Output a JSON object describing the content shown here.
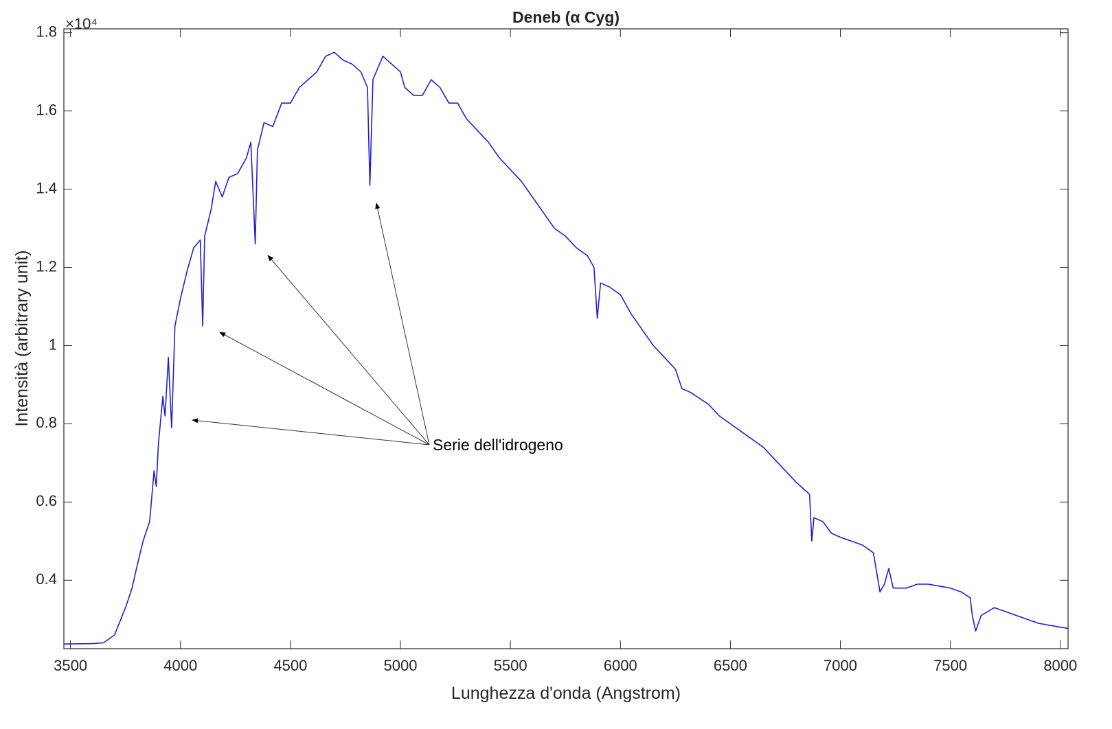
{
  "chart_data": {
    "type": "line",
    "title": "Deneb (α Cyg)",
    "x_label": "Lunghezza d'onda (Angstrom)",
    "y_label": "Intensità (arbitrary unit)",
    "y_multiplier": "×10⁴",
    "annotation": "Serie dell'idrogeno",
    "color": "#1f1fd6",
    "x": [
      3470,
      3600,
      3650,
      3700,
      3750,
      3780,
      3800,
      3830,
      3860,
      3880,
      3890,
      3900,
      3920,
      3930,
      3945,
      3960,
      3975,
      4000,
      4030,
      4060,
      4090,
      4101,
      4110,
      4140,
      4160,
      4190,
      4220,
      4260,
      4300,
      4320,
      4340,
      4350,
      4380,
      4420,
      4460,
      4500,
      4540,
      4580,
      4620,
      4660,
      4700,
      4740,
      4780,
      4820,
      4850,
      4861,
      4875,
      4920,
      4960,
      5000,
      5020,
      5060,
      5100,
      5140,
      5180,
      5220,
      5260,
      5300,
      5350,
      5400,
      5450,
      5500,
      5550,
      5600,
      5650,
      5700,
      5750,
      5800,
      5850,
      5880,
      5895,
      5910,
      5950,
      6000,
      6050,
      6100,
      6150,
      6200,
      6250,
      6280,
      6320,
      6400,
      6450,
      6500,
      6550,
      6600,
      6650,
      6700,
      6750,
      6800,
      6860,
      6870,
      6880,
      6920,
      6960,
      7000,
      7050,
      7100,
      7150,
      7165,
      7180,
      7200,
      7220,
      7240,
      7300,
      7350,
      7400,
      7450,
      7500,
      7550,
      7590,
      7600,
      7615,
      7640,
      7700,
      7750,
      7800,
      7850,
      7900,
      7950,
      8000,
      8035
    ],
    "values": [
      0.237,
      0.238,
      0.24,
      0.26,
      0.33,
      0.38,
      0.43,
      0.5,
      0.55,
      0.68,
      0.64,
      0.75,
      0.87,
      0.82,
      0.97,
      0.79,
      1.05,
      1.12,
      1.19,
      1.25,
      1.27,
      1.05,
      1.28,
      1.35,
      1.42,
      1.38,
      1.43,
      1.44,
      1.48,
      1.52,
      1.26,
      1.5,
      1.57,
      1.56,
      1.62,
      1.62,
      1.66,
      1.68,
      1.7,
      1.74,
      1.75,
      1.73,
      1.72,
      1.7,
      1.66,
      1.41,
      1.68,
      1.74,
      1.72,
      1.7,
      1.66,
      1.64,
      1.64,
      1.68,
      1.66,
      1.62,
      1.62,
      1.58,
      1.55,
      1.52,
      1.48,
      1.45,
      1.42,
      1.38,
      1.34,
      1.3,
      1.28,
      1.25,
      1.23,
      1.2,
      1.07,
      1.16,
      1.15,
      1.13,
      1.08,
      1.04,
      1.0,
      0.97,
      0.94,
      0.89,
      0.88,
      0.85,
      0.82,
      0.8,
      0.78,
      0.76,
      0.74,
      0.71,
      0.68,
      0.65,
      0.62,
      0.5,
      0.56,
      0.55,
      0.52,
      0.51,
      0.5,
      0.49,
      0.47,
      0.42,
      0.37,
      0.39,
      0.43,
      0.38,
      0.38,
      0.39,
      0.39,
      0.385,
      0.38,
      0.37,
      0.355,
      0.31,
      0.27,
      0.31,
      0.33,
      0.32,
      0.31,
      0.3,
      0.29,
      0.285,
      0.28,
      0.277
    ],
    "xlim": [
      3470,
      8035
    ],
    "ylim": [
      0.225,
      1.81
    ],
    "xticks": [
      3500,
      4000,
      4500,
      5000,
      5500,
      6000,
      6500,
      7000,
      7500,
      8000
    ],
    "yticks": [
      0.4,
      0.6,
      0.8,
      1,
      1.2,
      1.4,
      1.6,
      1.8
    ]
  }
}
